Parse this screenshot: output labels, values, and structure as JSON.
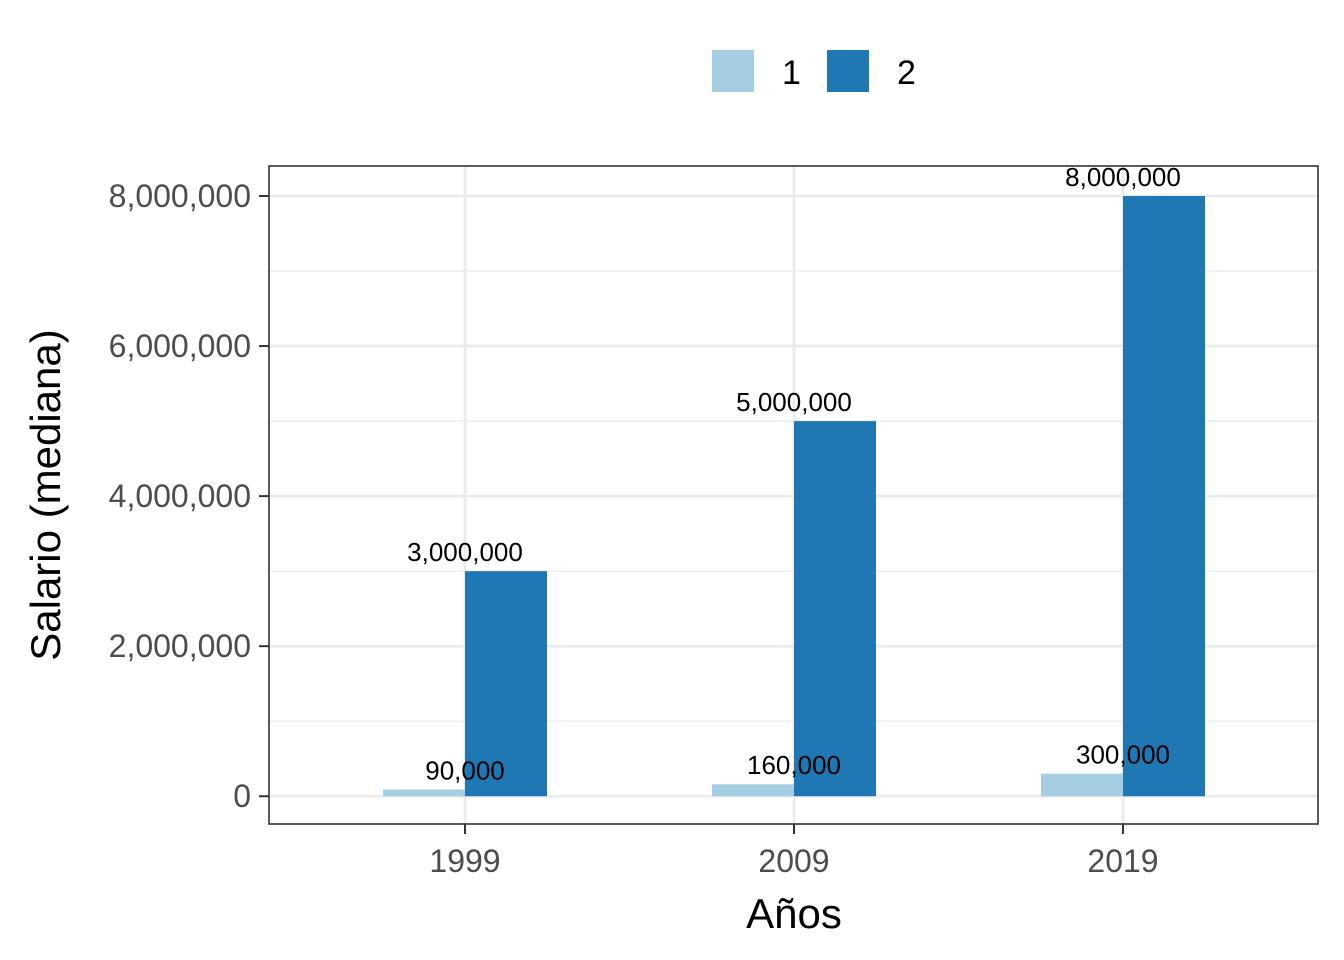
{
  "chart_data": {
    "type": "bar",
    "categories": [
      "1999",
      "2009",
      "2019"
    ],
    "series": [
      {
        "name": "1",
        "values": [
          90000,
          160000,
          300000
        ],
        "color": "#a6cee3"
      },
      {
        "name": "2",
        "values": [
          3000000,
          5000000,
          8000000
        ],
        "color": "#1f78b4"
      }
    ],
    "data_labels": [
      [
        "90,000",
        "160,000",
        "300,000"
      ],
      [
        "3,000,000",
        "5,000,000",
        "8,000,000"
      ]
    ],
    "xlabel": "Años",
    "ylabel": "Salario (mediana)",
    "ylim": [
      -370000,
      8400000
    ],
    "yticks": [
      0,
      2000000,
      4000000,
      6000000,
      8000000
    ],
    "ytick_labels": [
      "0",
      "2,000,000",
      "4,000,000",
      "6,000,000",
      "8,000,000"
    ],
    "legend_position": "top",
    "grid": true
  }
}
